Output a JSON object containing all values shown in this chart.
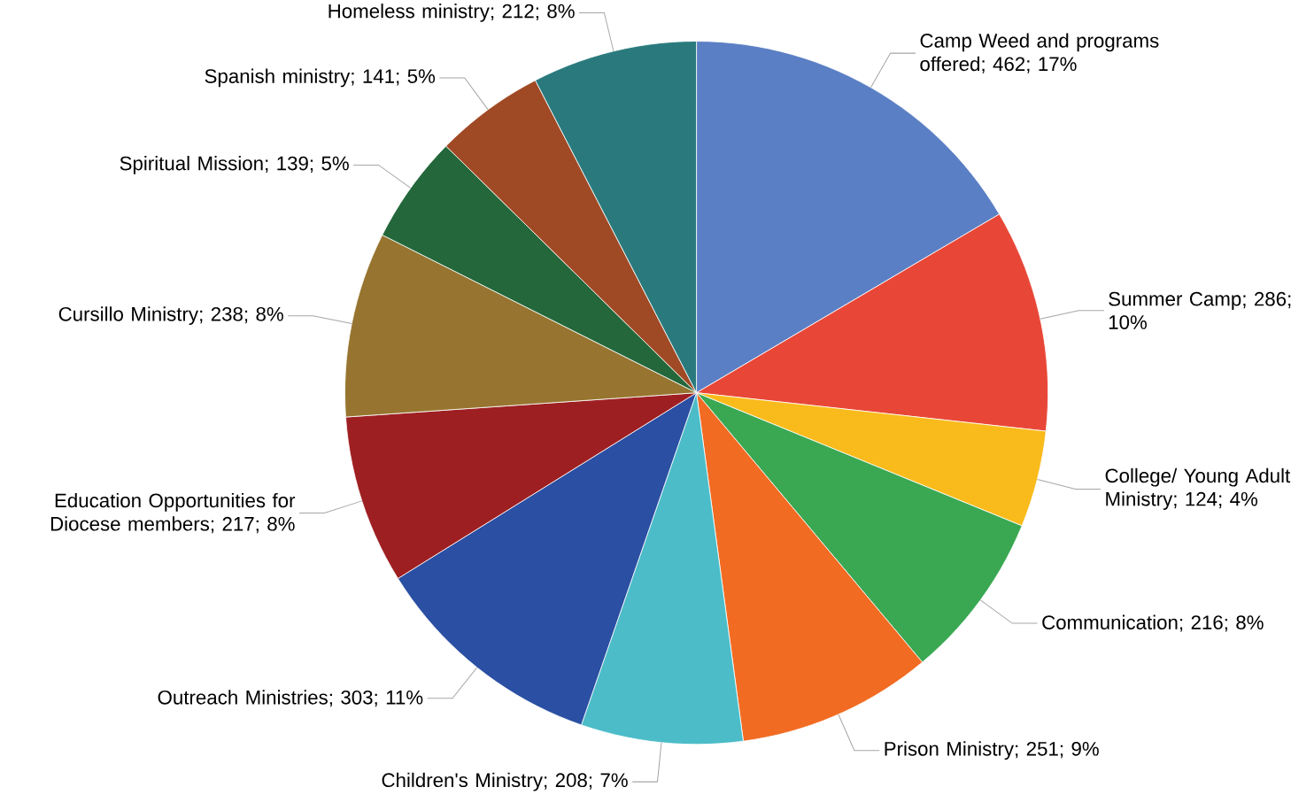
{
  "chart_data": {
    "type": "pie",
    "categories": [
      "Camp Weed and programs offered",
      "Summer Camp",
      "College/ Young Adult Ministry",
      "Communication",
      "Prison Ministry",
      "Children's Ministry",
      "Outreach Ministries",
      "Education Opportunities for Diocese members",
      "Cursillo Ministry",
      "Spiritual Mission",
      "Spanish ministry",
      "Homeless ministry"
    ],
    "values": [
      462,
      286,
      124,
      216,
      251,
      208,
      303,
      217,
      238,
      139,
      141,
      212
    ],
    "value_labels": [
      "; 462; 17%",
      "; 286; 10%",
      "; 124; 4%",
      "; 216; 8%",
      "; 251; 9%",
      "; 208; 7%",
      "; 303; 11%",
      "; 217; 8%",
      "; 238; 8%",
      "; 139; 5%",
      "; 141; 5%",
      "; 212; 8%"
    ],
    "colors": [
      "#5b7fc4",
      "#e84737",
      "#f9bb1b",
      "#3aa853",
      "#f26b22",
      "#4bbcc8",
      "#2a4fa3",
      "#9e1f22",
      "#977530",
      "#23673a",
      "#a04a25",
      "#2a7a7d"
    ]
  }
}
